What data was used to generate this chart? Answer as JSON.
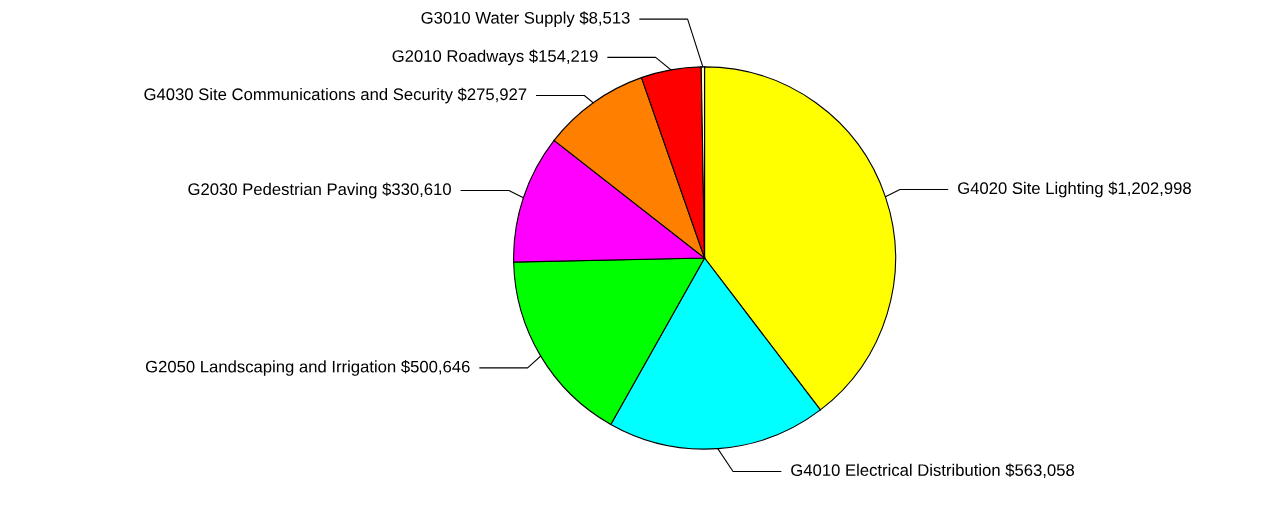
{
  "chart_data": {
    "type": "pie",
    "categories": [
      "G4020 Site Lighting",
      "G4010 Electrical Distribution",
      "G2050 Landscaping and Irrigation",
      "G2030 Pedestrian Paving",
      "G4030 Site Communications and Security",
      "G2010 Roadways",
      "G3010 Water Supply"
    ],
    "values": [
      1202998,
      563058,
      500646,
      330610,
      275927,
      154219,
      8513
    ],
    "value_labels": [
      "$1,202,998",
      "$563,058",
      "$500,646",
      "$330,610",
      "$275,927",
      "$154,219",
      "$8,513"
    ],
    "colors": [
      "#ffff00",
      "#00ffff",
      "#00ff00",
      "#ff00ff",
      "#ff8000",
      "#ff0000",
      "#ffffcc"
    ],
    "legend": false
  }
}
